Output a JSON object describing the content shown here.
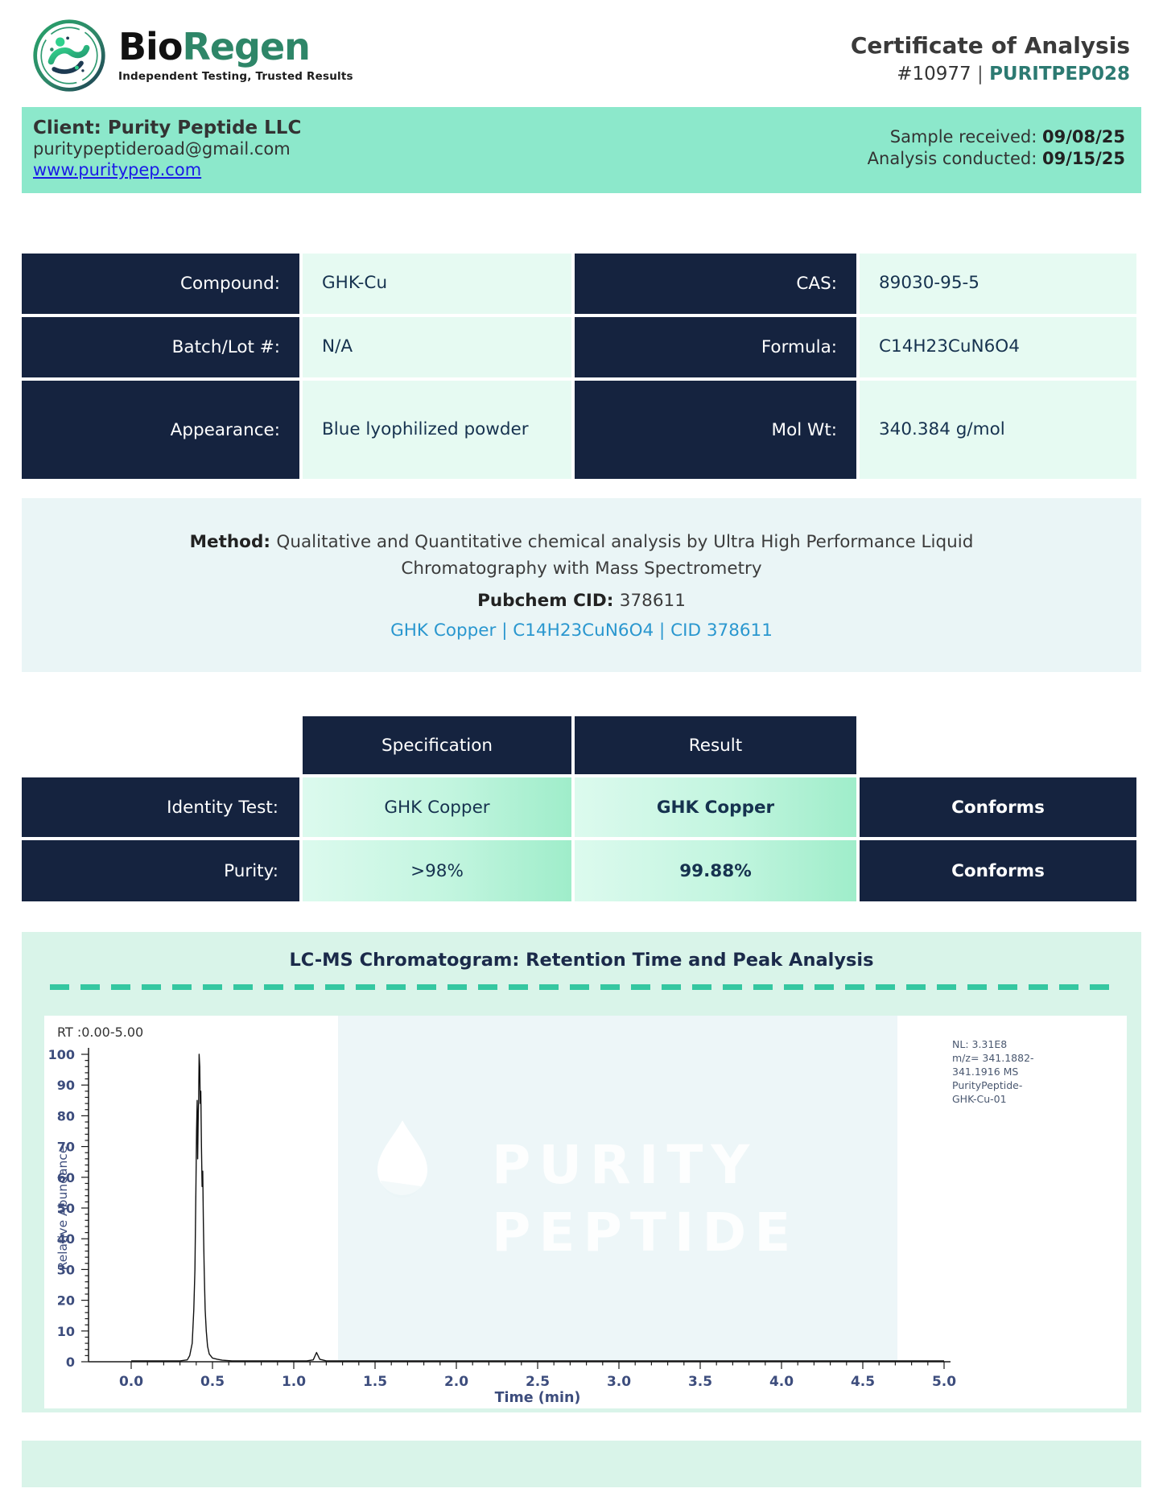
{
  "header": {
    "brand_bio": "Bio",
    "brand_regen": "Regen",
    "tagline": "Independent Testing, Trusted Results",
    "title": "Certificate of Analysis",
    "report_number": "#10977",
    "separator": " | ",
    "report_code": "PURITPEP028"
  },
  "client": {
    "name": "Client: Purity Peptide LLC",
    "email": "puritypeptideroad@gmail.com",
    "website": "www.puritypep.com",
    "sample_received_label": "Sample received: ",
    "sample_received_date": "09/08/25",
    "analysis_conducted_label": "Analysis conducted: ",
    "analysis_conducted_date": "09/15/25"
  },
  "compound_table": {
    "rows": [
      {
        "label": "Compound:",
        "value": "GHK-Cu",
        "label2": "CAS:",
        "value2": "89030-95-5"
      },
      {
        "label": "Batch/Lot #:",
        "value": "N/A",
        "label2": "Formula:",
        "value2": "C14H23CuN6O4"
      },
      {
        "label": "Appearance:",
        "value": "Blue lyophilized powder",
        "label2": "Mol Wt:",
        "value2": "340.384 g/mol"
      }
    ]
  },
  "method": {
    "label": "Method: ",
    "text": "Qualitative and Quantitative chemical analysis by Ultra High Performance Liquid Chromatography with Mass Spectrometry",
    "pubchem_label": "Pubchem CID: ",
    "pubchem_value": "378611",
    "link": "GHK Copper | C14H23CuN6O4 | CID 378611"
  },
  "results_table": {
    "header_specification": "Specification",
    "header_result": "Result",
    "rows": [
      {
        "label": "Identity Test:",
        "specification": "GHK Copper",
        "result": "GHK Copper",
        "status": "Conforms"
      },
      {
        "label": "Purity:",
        "specification": ">98%",
        "result": "99.88%",
        "status": "Conforms"
      }
    ]
  },
  "chromatogram": {
    "section_title": "LC-MS Chromatogram: Retention Time and Peak Analysis",
    "watermark": {
      "line1": "PURITY",
      "line2": "PEPTIDE"
    },
    "chart_data": {
      "type": "line",
      "title": "RT :0.00-5.00",
      "xlabel": "Time (min)",
      "ylabel": "Relative Abundance",
      "xlim": [
        0.0,
        5.0
      ],
      "ylim": [
        0,
        100
      ],
      "x_major_step": 0.5,
      "x_minor_step": 0.1,
      "y_major_step": 10,
      "y_minor_step": 2,
      "grid": false,
      "legend_position": "none",
      "peak_retention_time_min": 0.42,
      "peak_relative_abundance": 100,
      "annotation": [
        "NL: 3.31E8",
        "m/z= 341.1882-",
        "341.1916 MS",
        "PurityPeptide-",
        "GHK-Cu-01"
      ],
      "series": [
        {
          "name": "PurityPeptide-GHK-Cu-01",
          "points": [
            [
              0.0,
              0.3
            ],
            [
              0.3,
              0.3
            ],
            [
              0.345,
              0.6
            ],
            [
              0.36,
              2
            ],
            [
              0.375,
              6
            ],
            [
              0.385,
              17
            ],
            [
              0.392,
              30
            ],
            [
              0.398,
              56
            ],
            [
              0.402,
              75
            ],
            [
              0.406,
              85
            ],
            [
              0.409,
              66
            ],
            [
              0.412,
              78
            ],
            [
              0.415,
              85
            ],
            [
              0.418,
              100
            ],
            [
              0.422,
              96
            ],
            [
              0.425,
              84
            ],
            [
              0.428,
              88
            ],
            [
              0.432,
              70
            ],
            [
              0.436,
              57
            ],
            [
              0.44,
              62
            ],
            [
              0.444,
              45
            ],
            [
              0.449,
              30
            ],
            [
              0.455,
              17
            ],
            [
              0.462,
              10
            ],
            [
              0.47,
              5
            ],
            [
              0.48,
              2.5
            ],
            [
              0.5,
              1.2
            ],
            [
              0.53,
              0.8
            ],
            [
              0.56,
              0.5
            ],
            [
              0.62,
              0.3
            ],
            [
              1.08,
              0.3
            ],
            [
              1.12,
              0.6
            ],
            [
              1.14,
              3
            ],
            [
              1.16,
              0.8
            ],
            [
              1.2,
              0.3
            ],
            [
              2.0,
              0.3
            ],
            [
              3.0,
              0.3
            ],
            [
              4.0,
              0.3
            ],
            [
              5.0,
              0.3
            ]
          ]
        }
      ]
    }
  },
  "colors": {
    "navy_cell": "#15233f",
    "client_band_mint": "#8ce8cb",
    "value_cell_mint": "#e6faf2",
    "method_bg": "#eaf5f6",
    "section_mint": "#d9f4e9",
    "result_cell_gradient_start": "#dcfaee",
    "result_cell_gradient_end": "#9fedca",
    "dash_teal": "#35c7a1",
    "brand_teal": "#2e8668",
    "code_teal": "#2c7a72",
    "website_link_blue": "#1b1be6",
    "method_link_blue": "#2a97cf",
    "axis_label_navy": "#3d4d7d"
  }
}
